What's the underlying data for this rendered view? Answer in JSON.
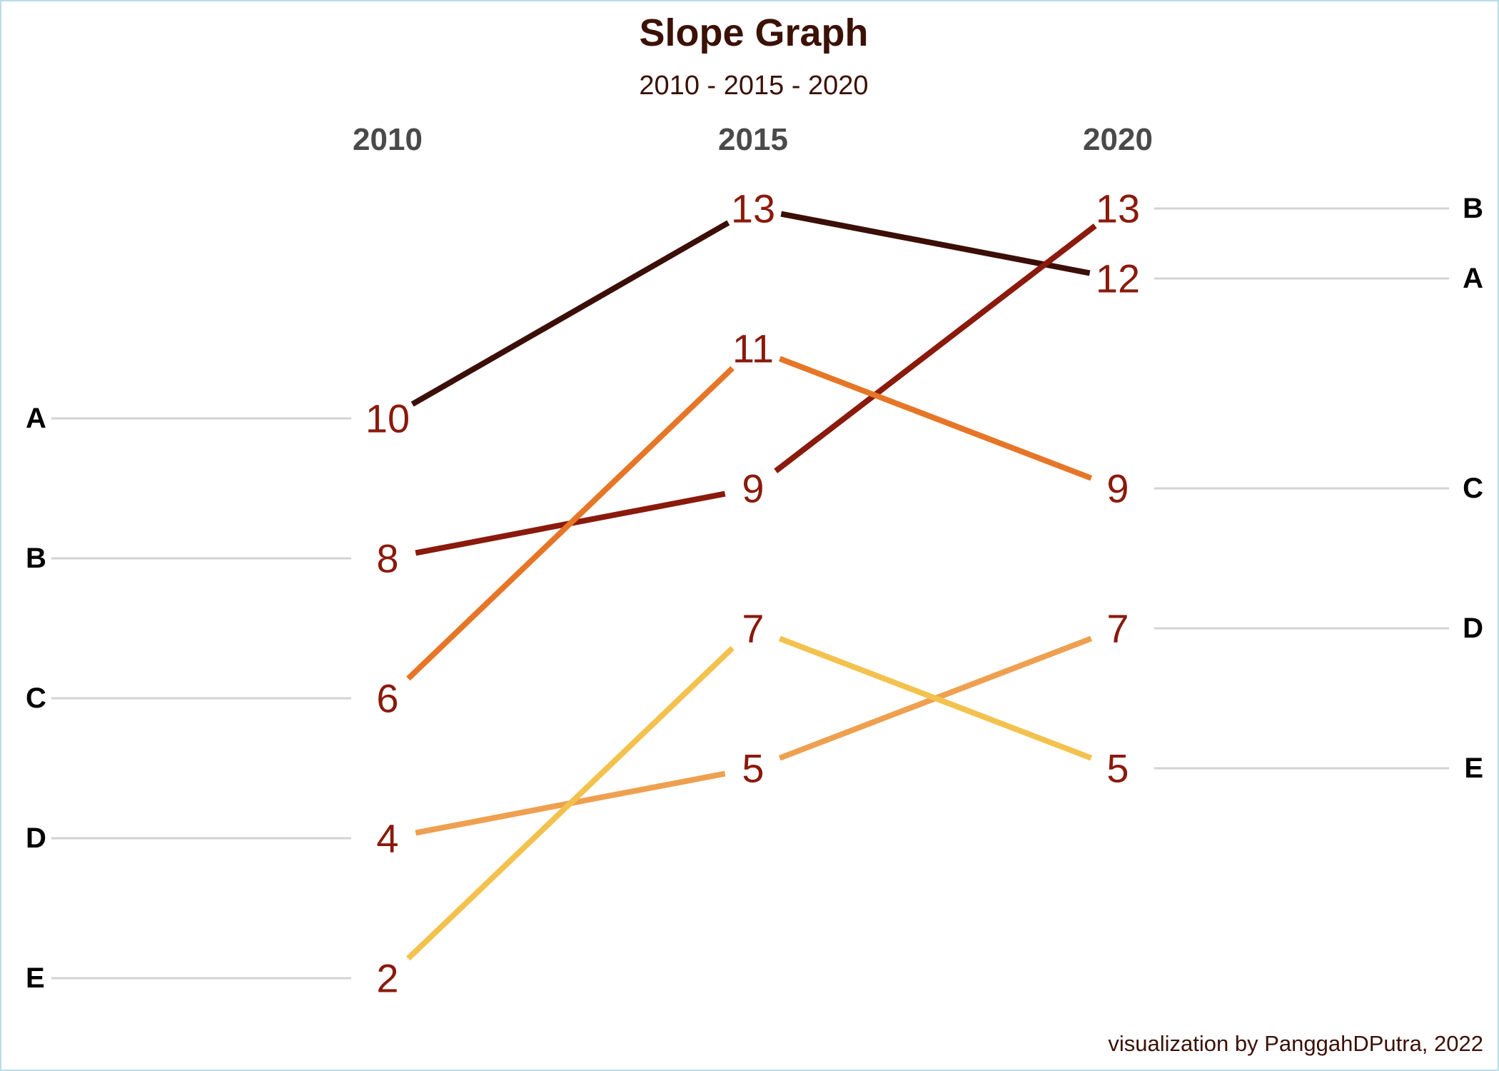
{
  "chart_data": {
    "type": "line",
    "title": "Slope Graph",
    "subtitle": "2010 - 2015 - 2020",
    "caption": "visualization by PanggahDPutra, 2022",
    "x": [
      "2010",
      "2015",
      "2020"
    ],
    "ylim": [
      1,
      14
    ],
    "grid": false,
    "legend": "none",
    "series": [
      {
        "name": "A",
        "values": [
          10,
          13,
          12
        ],
        "color": "#3b0f08"
      },
      {
        "name": "B",
        "values": [
          8,
          9,
          13
        ],
        "color": "#8a1a0c"
      },
      {
        "name": "C",
        "values": [
          6,
          11,
          9
        ],
        "color": "#e67627"
      },
      {
        "name": "D",
        "values": [
          4,
          5,
          7
        ],
        "color": "#eea050"
      },
      {
        "name": "E",
        "values": [
          2,
          7,
          5
        ],
        "color": "#f3c24e"
      }
    ]
  }
}
